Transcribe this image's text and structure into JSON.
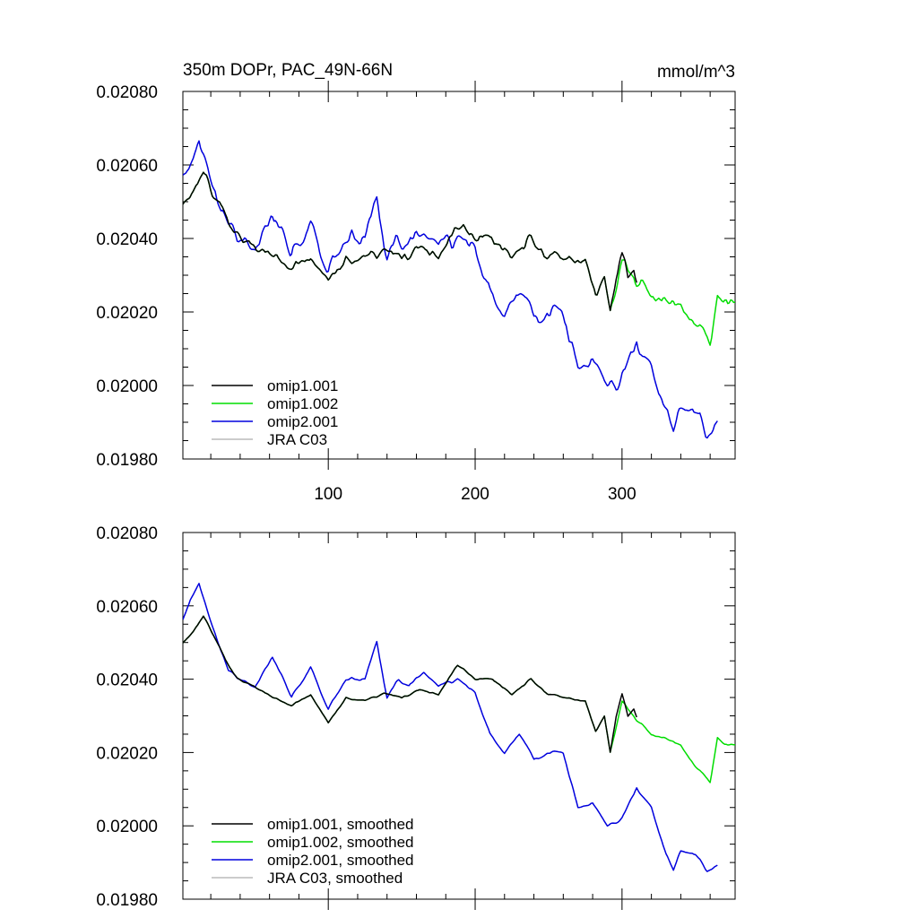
{
  "header": {
    "title": "350m DOPr, PAC_49N-66N",
    "units": "mmol/m^3"
  },
  "colors": {
    "omip1_001": "#000000",
    "omip1_002": "#00dd00",
    "omip2_001": "#0000dd",
    "jra_c03": "#bbbbbb"
  },
  "chart_data": [
    {
      "type": "line",
      "panel": "top",
      "title": "350m DOPr, PAC_49N-66N",
      "units": "mmol/m^3",
      "xlim": [
        1,
        377
      ],
      "ylim": [
        0.0198,
        0.0208
      ],
      "yticks": [
        "0.02080",
        "0.02060",
        "0.02040",
        "0.02020",
        "0.02000",
        "0.01980"
      ],
      "xticks": [
        "100",
        "200",
        "300"
      ],
      "legend_location": "lower-left",
      "series": [
        {
          "name": "omip1.001",
          "color": "#000000",
          "x_range": [
            1,
            310
          ],
          "wiggle": 2.2e-05,
          "x": [
            1,
            8,
            15,
            22,
            30,
            38,
            50,
            62,
            75,
            88,
            100,
            112,
            125,
            138,
            150,
            162,
            175,
            188,
            200,
            212,
            225,
            238,
            250,
            262,
            275,
            282,
            288,
            292,
            296,
            300,
            304,
            308,
            310
          ],
          "y": [
            0.0205,
            0.02053,
            0.02057,
            0.02052,
            0.02045,
            0.0204,
            0.02038,
            0.02035,
            0.02033,
            0.02036,
            0.02028,
            0.02035,
            0.02034,
            0.02036,
            0.02035,
            0.02037,
            0.02036,
            0.02044,
            0.0204,
            0.0204,
            0.02036,
            0.0204,
            0.02036,
            0.02035,
            0.02034,
            0.02026,
            0.0203,
            0.0202,
            0.0203,
            0.02036,
            0.0203,
            0.02032,
            0.0203
          ]
        },
        {
          "name": "omip1.002",
          "color": "#00dd00",
          "x_range": [
            1,
            377
          ],
          "wiggle": 2.2e-05,
          "x": [
            1,
            8,
            15,
            22,
            30,
            38,
            50,
            62,
            75,
            88,
            100,
            112,
            125,
            138,
            150,
            162,
            175,
            188,
            200,
            212,
            225,
            238,
            250,
            262,
            275,
            282,
            288,
            292,
            300,
            310,
            320,
            330,
            340,
            350,
            360,
            365,
            370,
            377
          ],
          "y": [
            0.0205,
            0.02053,
            0.02057,
            0.02052,
            0.02045,
            0.0204,
            0.02038,
            0.02035,
            0.02033,
            0.02036,
            0.02028,
            0.02035,
            0.02034,
            0.02036,
            0.02035,
            0.02037,
            0.02036,
            0.02044,
            0.0204,
            0.0204,
            0.02036,
            0.0204,
            0.02036,
            0.02035,
            0.02034,
            0.02026,
            0.0203,
            0.0202,
            0.02034,
            0.02029,
            0.02025,
            0.02024,
            0.02022,
            0.02016,
            0.02012,
            0.02024,
            0.02022,
            0.02022
          ]
        },
        {
          "name": "omip2.001",
          "color": "#0000dd",
          "x_range": [
            1,
            365
          ],
          "wiggle": 3e-05,
          "x": [
            1,
            6,
            12,
            18,
            25,
            32,
            40,
            50,
            62,
            75,
            88,
            100,
            112,
            125,
            133,
            140,
            148,
            155,
            165,
            175,
            188,
            200,
            210,
            220,
            230,
            240,
            250,
            260,
            270,
            280,
            290,
            300,
            310,
            320,
            330,
            335,
            340,
            350,
            358,
            365
          ],
          "y": [
            0.02056,
            0.02062,
            0.02066,
            0.02058,
            0.0205,
            0.02042,
            0.0204,
            0.02038,
            0.02046,
            0.02035,
            0.02043,
            0.02032,
            0.0204,
            0.0204,
            0.0205,
            0.02035,
            0.0204,
            0.02038,
            0.02042,
            0.02038,
            0.0204,
            0.02036,
            0.02025,
            0.0202,
            0.02025,
            0.02018,
            0.0202,
            0.0202,
            0.02005,
            0.02006,
            0.02,
            0.02002,
            0.0201,
            0.02005,
            0.01992,
            0.01988,
            0.01993,
            0.01992,
            0.01988,
            0.01989
          ]
        },
        {
          "name": "JRA C03",
          "color": "#bbbbbb",
          "x": [],
          "y": []
        }
      ]
    },
    {
      "type": "line",
      "panel": "bottom",
      "xlim": [
        1,
        377
      ],
      "ylim": [
        0.0198,
        0.0208
      ],
      "yticks": [
        "0.02080",
        "0.02060",
        "0.02040",
        "0.02020",
        "0.02000",
        "0.01980"
      ],
      "xticks": [],
      "legend_location": "lower-left",
      "series": [
        {
          "name": "omip1.001, smoothed",
          "color": "#000000",
          "x_range": [
            1,
            310
          ],
          "wiggle": 4e-06,
          "x": [
            1,
            8,
            15,
            22,
            30,
            38,
            50,
            62,
            75,
            88,
            100,
            112,
            125,
            138,
            150,
            162,
            175,
            188,
            200,
            212,
            225,
            238,
            250,
            262,
            275,
            282,
            288,
            292,
            296,
            300,
            304,
            308,
            310
          ],
          "y": [
            0.0205,
            0.02053,
            0.02057,
            0.02052,
            0.02045,
            0.0204,
            0.02038,
            0.02035,
            0.02033,
            0.02036,
            0.02028,
            0.02035,
            0.02034,
            0.02036,
            0.02035,
            0.02037,
            0.02036,
            0.02044,
            0.0204,
            0.0204,
            0.02036,
            0.0204,
            0.02036,
            0.02035,
            0.02034,
            0.02026,
            0.0203,
            0.0202,
            0.0203,
            0.02036,
            0.0203,
            0.02032,
            0.0203
          ]
        },
        {
          "name": "omip1.002, smoothed",
          "color": "#00dd00",
          "x_range": [
            1,
            377
          ],
          "wiggle": 4e-06,
          "x": [
            1,
            8,
            15,
            22,
            30,
            38,
            50,
            62,
            75,
            88,
            100,
            112,
            125,
            138,
            150,
            162,
            175,
            188,
            200,
            212,
            225,
            238,
            250,
            262,
            275,
            282,
            288,
            292,
            300,
            310,
            320,
            330,
            340,
            350,
            360,
            365,
            370,
            377
          ],
          "y": [
            0.0205,
            0.02053,
            0.02057,
            0.02052,
            0.02045,
            0.0204,
            0.02038,
            0.02035,
            0.02033,
            0.02036,
            0.02028,
            0.02035,
            0.02034,
            0.02036,
            0.02035,
            0.02037,
            0.02036,
            0.02044,
            0.0204,
            0.0204,
            0.02036,
            0.0204,
            0.02036,
            0.02035,
            0.02034,
            0.02026,
            0.0203,
            0.0202,
            0.02034,
            0.02029,
            0.02025,
            0.02024,
            0.02022,
            0.02016,
            0.02012,
            0.02024,
            0.02022,
            0.02022
          ]
        },
        {
          "name": "omip2.001, smoothed",
          "color": "#0000dd",
          "x_range": [
            1,
            365
          ],
          "wiggle": 6e-06,
          "x": [
            1,
            6,
            12,
            18,
            25,
            32,
            40,
            50,
            62,
            75,
            88,
            100,
            112,
            125,
            133,
            140,
            148,
            155,
            165,
            175,
            188,
            200,
            210,
            220,
            230,
            240,
            250,
            260,
            270,
            280,
            290,
            300,
            310,
            320,
            330,
            335,
            340,
            350,
            358,
            365
          ],
          "y": [
            0.02056,
            0.02062,
            0.02066,
            0.02058,
            0.0205,
            0.02042,
            0.0204,
            0.02038,
            0.02046,
            0.02035,
            0.02043,
            0.02032,
            0.0204,
            0.0204,
            0.0205,
            0.02035,
            0.0204,
            0.02038,
            0.02042,
            0.02038,
            0.0204,
            0.02036,
            0.02025,
            0.0202,
            0.02025,
            0.02018,
            0.0202,
            0.0202,
            0.02005,
            0.02006,
            0.02,
            0.02002,
            0.0201,
            0.02005,
            0.01992,
            0.01988,
            0.01993,
            0.01992,
            0.01988,
            0.01989
          ]
        },
        {
          "name": "JRA C03, smoothed",
          "color": "#bbbbbb",
          "x": [],
          "y": []
        }
      ]
    }
  ]
}
